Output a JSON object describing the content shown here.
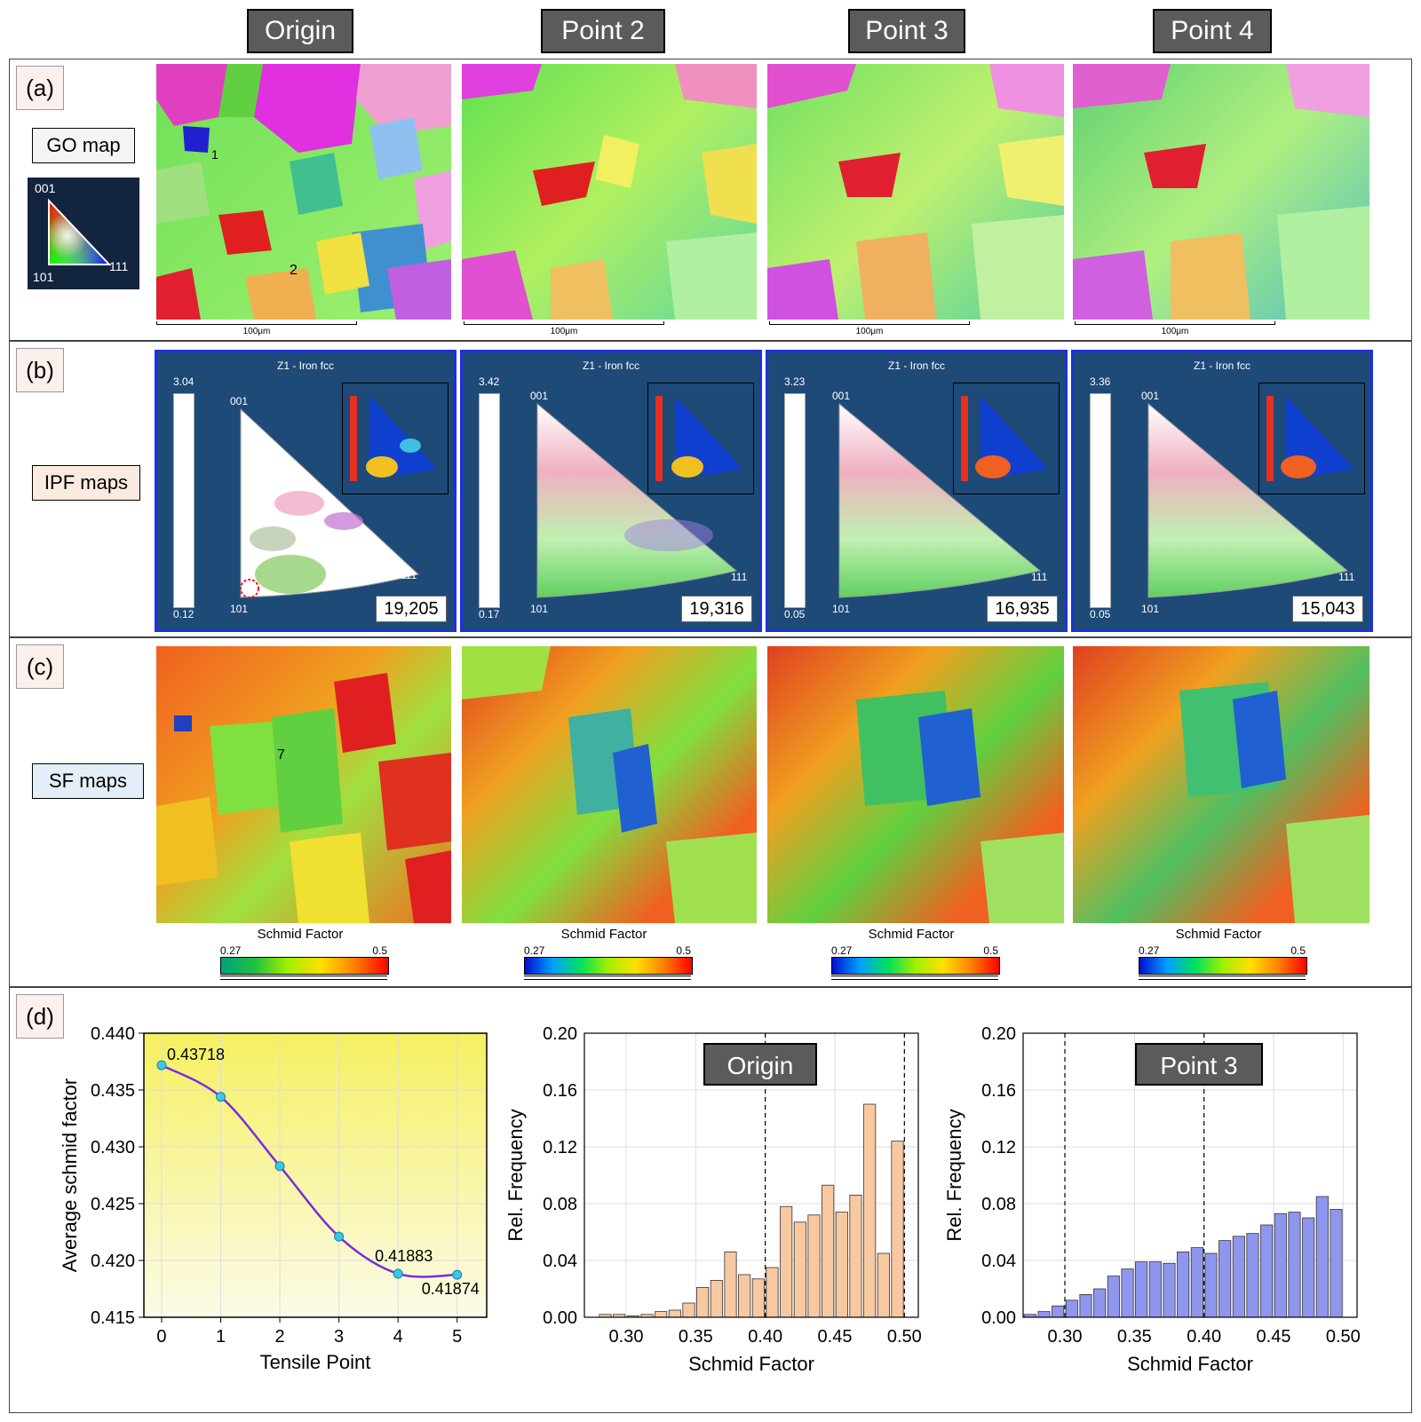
{
  "headers": [
    "Origin",
    "Point 2",
    "Point 3",
    "Point 4"
  ],
  "panels": {
    "a": "(a)",
    "b": "(b)",
    "c": "(c)",
    "d": "(d)"
  },
  "row_labels": {
    "go": "GO map",
    "ipf": "IPF maps",
    "sf": "SF maps"
  },
  "key_triangle": {
    "top": "001",
    "left": "101",
    "right": "111"
  },
  "grain_labels": [
    "1",
    "2",
    "7"
  ],
  "scale_bar": "100μm",
  "ipf_maps": [
    {
      "title": "Z1 - Iron fcc",
      "max": "3.04",
      "min": "0.12",
      "count": "19,205",
      "v001": "001",
      "v101": "101",
      "v111": "111"
    },
    {
      "title": "Z1 - Iron fcc",
      "max": "3.42",
      "min": "0.17",
      "count": "19,316",
      "v001": "001",
      "v101": "101",
      "v111": "111"
    },
    {
      "title": "Z1 - Iron fcc",
      "max": "3.23",
      "min": "0.05",
      "count": "16,935",
      "v001": "001",
      "v101": "101",
      "v111": "111"
    },
    {
      "title": "Z1 - Iron fcc",
      "max": "3.36",
      "min": "0.05",
      "count": "15,043",
      "v001": "001",
      "v101": "101",
      "v111": "111"
    }
  ],
  "sf_legend": {
    "title": "Schmid Factor",
    "min": "0.27",
    "max": "0.5"
  },
  "colors": {
    "header_bg": "#5b5b5b",
    "ipf_bg": "#1e4a78",
    "ipf_border": "#1c30e0",
    "origin_bar": "#f8c9a0",
    "point3_bar": "#8f96ee",
    "line": "#7b2ce0",
    "marker": "#38c8e8"
  },
  "chart_data": [
    {
      "type": "line",
      "x": [
        0,
        1,
        2,
        3,
        4,
        5
      ],
      "y": [
        0.43718,
        0.4344,
        0.4283,
        0.4221,
        0.41883,
        0.41874
      ],
      "point_labels": [
        "0.43718",
        "",
        "",
        "",
        "0.41883",
        "0.41874"
      ],
      "xlabel": "Tensile Point",
      "ylabel": "Average schmid factor",
      "xticks": [
        "0",
        "1",
        "2",
        "3",
        "4",
        "5"
      ],
      "yticks": [
        "0.415",
        "0.420",
        "0.425",
        "0.430",
        "0.435",
        "0.440"
      ],
      "ylim": [
        0.415,
        0.44
      ],
      "xlim": [
        -0.3,
        5.5
      ]
    },
    {
      "type": "bar",
      "title": "Origin",
      "x": [
        0.285,
        0.295,
        0.305,
        0.315,
        0.325,
        0.335,
        0.345,
        0.355,
        0.365,
        0.375,
        0.385,
        0.395,
        0.405,
        0.415,
        0.425,
        0.435,
        0.445,
        0.455,
        0.465,
        0.475,
        0.485,
        0.495
      ],
      "values": [
        0.002,
        0.002,
        0.001,
        0.002,
        0.004,
        0.005,
        0.01,
        0.021,
        0.026,
        0.046,
        0.03,
        0.027,
        0.035,
        0.078,
        0.067,
        0.072,
        0.093,
        0.074,
        0.086,
        0.15,
        0.045,
        0.124
      ],
      "xlabel": "Schmid Factor",
      "ylabel": "Rel. Frequency",
      "xticks": [
        "0.30",
        "0.35",
        "0.40",
        "0.45",
        "0.50"
      ],
      "yticks": [
        "0.00",
        "0.04",
        "0.08",
        "0.12",
        "0.16",
        "0.20"
      ],
      "xlim": [
        0.27,
        0.51
      ],
      "ylim": [
        0,
        0.2
      ],
      "dashed_lines": [
        0.4,
        0.5
      ]
    },
    {
      "type": "bar",
      "title": "Point 3",
      "x": [
        0.275,
        0.285,
        0.295,
        0.305,
        0.315,
        0.325,
        0.335,
        0.345,
        0.355,
        0.365,
        0.375,
        0.385,
        0.395,
        0.405,
        0.415,
        0.425,
        0.435,
        0.445,
        0.455,
        0.465,
        0.475,
        0.485,
        0.495
      ],
      "values": [
        0.002,
        0.004,
        0.008,
        0.012,
        0.016,
        0.02,
        0.029,
        0.034,
        0.039,
        0.039,
        0.038,
        0.046,
        0.049,
        0.045,
        0.054,
        0.057,
        0.059,
        0.065,
        0.073,
        0.074,
        0.07,
        0.085,
        0.076
      ],
      "xlabel": "Schmid Factor",
      "ylabel": "Rel. Frequency",
      "xticks": [
        "0.30",
        "0.35",
        "0.40",
        "0.45",
        "0.50"
      ],
      "yticks": [
        "0.00",
        "0.04",
        "0.08",
        "0.12",
        "0.16",
        "0.20"
      ],
      "xlim": [
        0.27,
        0.51
      ],
      "ylim": [
        0,
        0.2
      ],
      "dashed_lines": [
        0.3,
        0.4
      ]
    }
  ]
}
